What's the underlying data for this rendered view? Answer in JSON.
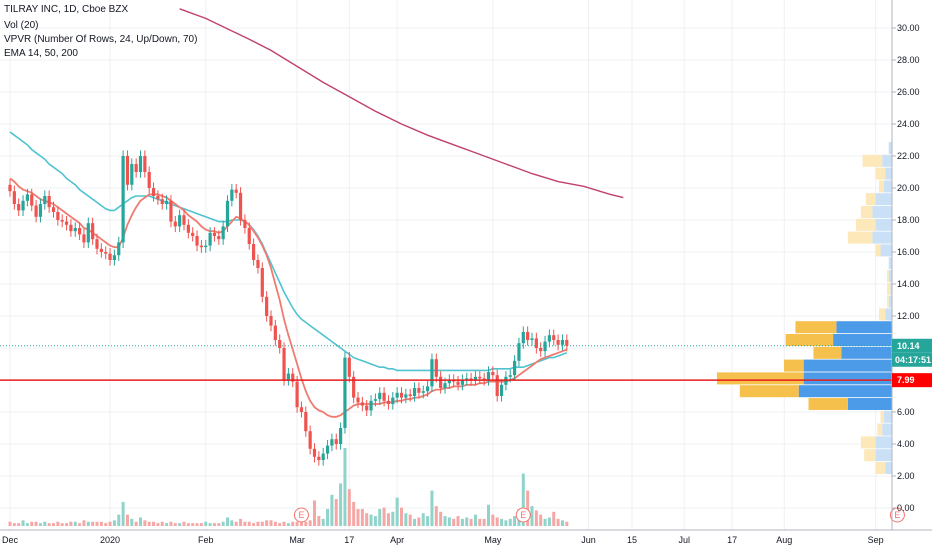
{
  "header": {
    "symbol": "TILRAY INC, 1D, Cboe BZX",
    "volume": "Vol (20)",
    "vpvr": "VPVR (Number Of Rows, 24, Up/Down, 70)",
    "ema": "EMA 14, 50, 200"
  },
  "colors": {
    "up": "#26a69a",
    "down": "#ef5350",
    "vol_up": "#8fd3ca",
    "vol_down": "#f4a7a5",
    "ema14": "#f07b70",
    "ema50": "#4fc3cf",
    "ema200": "#c0406f",
    "vp_up": "#4c9be8",
    "vp_down": "#f5c04c",
    "vp_up_va": "#c9e0f7",
    "vp_down_va": "#fce8b8",
    "hline": "#e51c1c",
    "price_badge": "#26a69a",
    "hline_badge": "#ff0000"
  },
  "badges": {
    "last_price": "10.14",
    "countdown": "04:17:51",
    "hline_price": "7.99"
  },
  "event_markers": [
    {
      "label": "E",
      "date_index": 67
    },
    {
      "label": "E",
      "date_index": 118
    },
    {
      "label": "E",
      "date_index": 204
    }
  ],
  "chart_data": {
    "type": "candlestick",
    "title": "TILRAY INC, 1D, Cboe BZX",
    "y_ticks": [
      "0.00",
      "2.00",
      "4.00",
      "6.00",
      "8.00",
      "10.00",
      "12.00",
      "14.00",
      "16.00",
      "18.00",
      "20.00",
      "22.00",
      "24.00",
      "26.00",
      "28.00",
      "30.00"
    ],
    "ylim": [
      -0.9,
      31.5
    ],
    "x_ticks": [
      {
        "label": "Dec",
        "i": 0
      },
      {
        "label": "2020",
        "i": 23
      },
      {
        "label": "Feb",
        "i": 45
      },
      {
        "label": "Mar",
        "i": 66
      },
      {
        "label": "17",
        "i": 78
      },
      {
        "label": "Apr",
        "i": 89
      },
      {
        "label": "May",
        "i": 111
      },
      {
        "label": "Jun",
        "i": 133
      },
      {
        "label": "15",
        "i": 143
      },
      {
        "label": "Jul",
        "i": 155
      },
      {
        "label": "17",
        "i": 166
      },
      {
        "label": "Aug",
        "i": 178
      },
      {
        "label": "Sep",
        "i": 199
      }
    ],
    "xlim": [
      -0.5,
      203
    ],
    "last_price": 10.14,
    "horizontal_line": 7.99,
    "closes": [
      19.8,
      19.0,
      18.6,
      19.2,
      19.6,
      18.9,
      18.2,
      19.0,
      19.5,
      18.8,
      18.5,
      18.0,
      17.9,
      17.7,
      17.3,
      17.5,
      17.1,
      16.6,
      17.8,
      16.8,
      16.2,
      16.0,
      15.9,
      15.5,
      15.8,
      16.6,
      22.0,
      20.2,
      21.5,
      21.0,
      22.0,
      21.0,
      20.0,
      19.5,
      19.3,
      19.0,
      19.2,
      17.9,
      17.6,
      18.3,
      17.7,
      17.2,
      17.0,
      16.4,
      16.3,
      16.4,
      17.2,
      17.0,
      16.8,
      17.6,
      19.2,
      19.9,
      19.7,
      18.0,
      17.5,
      16.5,
      15.5,
      15.0,
      13.2,
      12.0,
      11.4,
      10.5,
      10.0,
      8.0,
      8.4,
      7.9,
      6.3,
      6.0,
      4.8,
      3.7,
      3.2,
      3.0,
      3.4,
      3.9,
      4.3,
      4.0,
      5.0,
      9.4,
      8.2,
      6.9,
      6.6,
      6.4,
      6.1,
      6.7,
      6.8,
      7.2,
      6.7,
      6.5,
      6.9,
      7.2,
      6.9,
      7.1,
      7.0,
      7.5,
      7.2,
      7.3,
      7.6,
      9.3,
      8.2,
      7.5,
      7.8,
      8.0,
      7.9,
      7.7,
      8.0,
      8.1,
      8.0,
      8.2,
      8.1,
      8.0,
      8.5,
      8.3,
      7.0,
      7.7,
      8.2,
      8.3,
      9.2,
      10.3,
      11.0,
      10.5,
      10.6,
      10.0,
      9.8,
      10.4,
      10.8,
      10.5,
      10.2,
      10.5,
      10.14
    ],
    "vol": [
      0.3,
      0.2,
      0.2,
      0.4,
      0.2,
      0.3,
      0.3,
      0.2,
      0.3,
      0.2,
      0.2,
      0.3,
      0.2,
      0.2,
      0.3,
      0.3,
      0.2,
      0.4,
      0.3,
      0.3,
      0.3,
      0.3,
      0.2,
      0.3,
      0.4,
      0.8,
      1.7,
      0.8,
      0.5,
      0.3,
      0.6,
      0.4,
      0.3,
      0.3,
      0.2,
      0.3,
      0.2,
      0.3,
      0.2,
      0.2,
      0.3,
      0.2,
      0.2,
      0.2,
      0.2,
      0.3,
      0.2,
      0.2,
      0.2,
      0.3,
      0.6,
      0.4,
      0.3,
      0.5,
      0.3,
      0.3,
      0.2,
      0.3,
      0.3,
      0.4,
      0.4,
      0.3,
      0.2,
      0.3,
      0.2,
      0.3,
      0.3,
      0.4,
      0.3,
      0.4,
      1.8,
      0.7,
      0.5,
      1.2,
      2.2,
      1.9,
      3.0,
      5.5,
      2.6,
      1.7,
      1.2,
      1.2,
      0.9,
      0.8,
      0.7,
      1.2,
      1.3,
      0.9,
      1.0,
      2.0,
      1.3,
      0.9,
      0.8,
      0.5,
      0.6,
      0.9,
      0.7,
      2.5,
      1.4,
      1.0,
      0.7,
      0.6,
      0.5,
      0.7,
      0.5,
      0.6,
      0.5,
      0.8,
      0.5,
      0.5,
      1.5,
      0.8,
      0.6,
      0.5,
      0.4,
      0.5,
      0.7,
      1.2,
      3.7,
      2.5,
      1.4,
      1.1,
      0.8,
      0.5,
      0.6,
      1.0,
      0.5,
      0.4,
      0.3
    ],
    "ema14": [
      20.6,
      20.4,
      20.1,
      19.9,
      19.8,
      19.7,
      19.5,
      19.3,
      19.2,
      19.1,
      19.0,
      18.8,
      18.6,
      18.4,
      18.2,
      18.0,
      17.8,
      17.5,
      17.4,
      17.2,
      17.0,
      16.8,
      16.6,
      16.4,
      16.3,
      16.3,
      16.9,
      17.7,
      18.3,
      18.8,
      19.2,
      19.4,
      19.6,
      19.6,
      19.6,
      19.5,
      19.4,
      19.2,
      19.0,
      18.8,
      18.6,
      18.3,
      18.1,
      17.9,
      17.6,
      17.4,
      17.3,
      17.3,
      17.2,
      17.3,
      17.6,
      17.9,
      18.2,
      18.1,
      17.9,
      17.7,
      17.3,
      16.9,
      16.4,
      15.8,
      15.0,
      14.0,
      13.0,
      11.8,
      10.8,
      9.9,
      9.0,
      8.1,
      7.3,
      6.7,
      6.3,
      6.1,
      6.0,
      5.8,
      5.7,
      5.7,
      5.8,
      6.0,
      6.2,
      6.4,
      6.5,
      6.5,
      6.5,
      6.5,
      6.5,
      6.5,
      6.6,
      6.6,
      6.6,
      6.7,
      6.7,
      6.8,
      6.8,
      6.9,
      6.9,
      7.0,
      7.1,
      7.3,
      7.4,
      7.4,
      7.5,
      7.5,
      7.6,
      7.6,
      7.6,
      7.7,
      7.7,
      7.7,
      7.8,
      7.8,
      7.9,
      7.9,
      7.9,
      7.9,
      7.9,
      8.0,
      8.1,
      8.3,
      8.5,
      8.7,
      8.9,
      9.1,
      9.3,
      9.4,
      9.5,
      9.6,
      9.7,
      9.8,
      9.9
    ],
    "ema50": [
      23.5,
      23.3,
      23.1,
      22.9,
      22.7,
      22.4,
      22.2,
      22.0,
      21.8,
      21.5,
      21.3,
      21.1,
      20.9,
      20.6,
      20.4,
      20.2,
      19.9,
      19.7,
      19.5,
      19.3,
      19.1,
      18.9,
      18.7,
      18.6,
      18.6,
      18.8,
      19.0,
      19.2,
      19.4,
      19.5,
      19.5,
      19.5,
      19.5,
      19.4,
      19.3,
      19.2,
      19.1,
      19.0,
      18.9,
      18.8,
      18.7,
      18.6,
      18.5,
      18.4,
      18.3,
      18.2,
      18.1,
      18.0,
      17.9,
      17.9,
      17.9,
      18.0,
      18.0,
      18.0,
      17.9,
      17.7,
      17.4,
      17.0,
      16.5,
      15.9,
      15.3,
      14.7,
      14.1,
      13.5,
      13.0,
      12.5,
      12.1,
      11.8,
      11.6,
      11.4,
      11.2,
      11.0,
      10.8,
      10.6,
      10.4,
      10.2,
      10.0,
      9.8,
      9.6,
      9.4,
      9.3,
      9.2,
      9.1,
      9.0,
      8.9,
      8.8,
      8.8,
      8.7,
      8.7,
      8.6,
      8.6,
      8.6,
      8.6,
      8.6,
      8.6,
      8.6,
      8.6,
      8.6,
      8.6,
      8.6,
      8.6,
      8.6,
      8.6,
      8.6,
      8.6,
      8.6,
      8.6,
      8.6,
      8.6,
      8.6,
      8.6,
      8.7,
      8.7,
      8.7,
      8.7,
      8.7,
      8.8,
      8.8,
      8.8,
      8.9,
      9.0,
      9.1,
      9.2,
      9.3,
      9.4,
      9.4,
      9.5,
      9.6,
      9.7
    ],
    "ema200": [
      {
        "i": 39,
        "v": 31.2
      },
      {
        "i": 45,
        "v": 30.6
      },
      {
        "i": 55,
        "v": 29.3
      },
      {
        "i": 60,
        "v": 28.6
      },
      {
        "i": 66,
        "v": 27.6
      },
      {
        "i": 72,
        "v": 26.6
      },
      {
        "i": 78,
        "v": 25.7
      },
      {
        "i": 84,
        "v": 24.8
      },
      {
        "i": 90,
        "v": 24.0
      },
      {
        "i": 96,
        "v": 23.3
      },
      {
        "i": 102,
        "v": 22.7
      },
      {
        "i": 108,
        "v": 22.1
      },
      {
        "i": 114,
        "v": 21.5
      },
      {
        "i": 120,
        "v": 20.9
      },
      {
        "i": 126,
        "v": 20.4
      },
      {
        "i": 132,
        "v": 20.1
      },
      {
        "i": 138,
        "v": 19.6
      },
      {
        "i": 141,
        "v": 19.4
      }
    ],
    "volume_profile": [
      {
        "price": 22.5,
        "up": 0.02,
        "down": 0.0
      },
      {
        "price": 21.7,
        "up": 0.06,
        "down": 0.12
      },
      {
        "price": 20.9,
        "up": 0.04,
        "down": 0.06
      },
      {
        "price": 20.1,
        "up": 0.05,
        "down": 0.03
      },
      {
        "price": 19.3,
        "up": 0.1,
        "down": 0.06
      },
      {
        "price": 18.5,
        "up": 0.12,
        "down": 0.07
      },
      {
        "price": 17.7,
        "up": 0.1,
        "down": 0.12
      },
      {
        "price": 16.9,
        "up": 0.12,
        "down": 0.15
      },
      {
        "price": 16.1,
        "up": 0.07,
        "down": 0.03
      },
      {
        "price": 15.3,
        "up": 0.02,
        "down": 0.0
      },
      {
        "price": 14.5,
        "up": 0.02,
        "down": 0.01
      },
      {
        "price": 13.7,
        "up": 0.01,
        "down": 0.02
      },
      {
        "price": 12.9,
        "up": 0.02,
        "down": 0.01
      },
      {
        "price": 12.1,
        "up": 0.04,
        "down": 0.04
      },
      {
        "price": 11.3,
        "up": 0.34,
        "down": 0.25
      },
      {
        "price": 10.5,
        "up": 0.36,
        "down": 0.29
      },
      {
        "price": 9.7,
        "up": 0.31,
        "down": 0.17
      },
      {
        "price": 8.9,
        "up": 0.54,
        "down": 0.12
      },
      {
        "price": 8.1,
        "up": 0.54,
        "down": 0.53
      },
      {
        "price": 7.3,
        "up": 0.57,
        "down": 0.36
      },
      {
        "price": 6.5,
        "up": 0.27,
        "down": 0.24
      },
      {
        "price": 5.7,
        "up": 0.05,
        "down": 0.02
      },
      {
        "price": 4.9,
        "up": 0.06,
        "down": 0.03
      },
      {
        "price": 4.1,
        "up": 0.1,
        "down": 0.09
      },
      {
        "price": 3.3,
        "up": 0.1,
        "down": 0.07
      },
      {
        "price": 2.5,
        "up": 0.04,
        "down": 0.06
      }
    ]
  }
}
